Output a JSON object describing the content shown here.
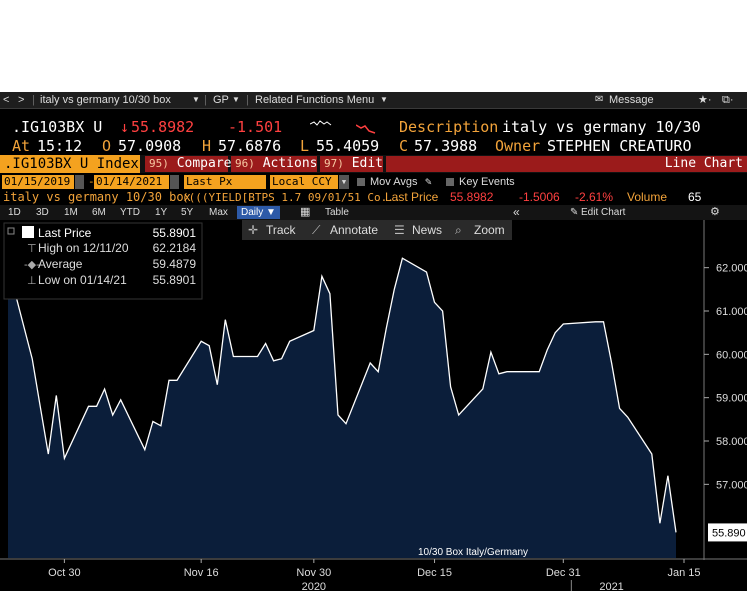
{
  "toolbar": {
    "back": "<",
    "fwd": ">",
    "search": "italy vs germany 10/30 box",
    "gp": "GP",
    "related": "Related Functions Menu",
    "message": "Message",
    "star": "★·",
    "window": "⧉·"
  },
  "quote": {
    "ticker": ".IG103BX U",
    "arrow": "↓",
    "last": "55.8982",
    "change": "-1.501",
    "desc_label": "Description",
    "desc_value": "italy vs germany 10/30",
    "at_label": "At",
    "time": "15:12",
    "open_label": "O",
    "open": "57.0908",
    "high_label": "H",
    "high": "57.6876",
    "low_label": "L",
    "low": "55.4059",
    "close_label": "C",
    "close": "57.3988",
    "owner_label": "Owner",
    "owner": "STEPHEN CREATURO"
  },
  "bar": {
    "security": ".IG103BX U Index",
    "compare_num": "95)",
    "compare": "Compare",
    "actions_num": "96)",
    "actions": "Actions",
    "edit_num": "97)",
    "edit": "Edit",
    "chart_type": "Line Chart"
  },
  "dates": {
    "start": "01/15/2019",
    "end": "01/14/2021",
    "field": "Last Px",
    "ccy": "Local CCY",
    "mov_avgs": "Mov Avgs",
    "key_events": "Key Events"
  },
  "security_row": {
    "name": "italy vs germany 10/30 box",
    "formula": "((((YIELD[BTPS 1.7 09/01/51 Co...",
    "last_price_label": "Last Price",
    "last_price": "55.8982",
    "chg": "-1.5006",
    "pct": "-2.61%",
    "volume_label": "Volume",
    "volume": "65"
  },
  "ranges": {
    "items": [
      "1D",
      "3D",
      "1M",
      "6M",
      "YTD",
      "1Y",
      "5Y",
      "Max"
    ],
    "selected": "Daily ▼",
    "table": "Table",
    "collapse": "«",
    "edit_chart": "Edit Chart",
    "settings": "⚙"
  },
  "chart_tools": {
    "track": "Track",
    "annotate": "Annotate",
    "news": "News",
    "zoom": "Zoom"
  },
  "legend": {
    "last_price_label": "Last Price",
    "last_price": "55.8901",
    "high_label": "High on 12/11/20",
    "high": "62.2184",
    "avg_label": "Average",
    "avg": "59.4879",
    "low_label": "Low on 01/14/21",
    "low": "55.8901"
  },
  "colors": {
    "line": "#ffffff",
    "fill": "#0b1e3a",
    "background": "#000000",
    "accent": "#f4a21f",
    "negative": "#ff4040"
  },
  "chart_data": {
    "type": "area",
    "title": "",
    "annotation": "10/30 Box Italy/Germany",
    "x": [
      "2020-10-23",
      "2020-10-26",
      "2020-10-27",
      "2020-10-28",
      "2020-10-29",
      "2020-10-30",
      "2020-11-02",
      "2020-11-03",
      "2020-11-04",
      "2020-11-05",
      "2020-11-06",
      "2020-11-09",
      "2020-11-10",
      "2020-11-11",
      "2020-11-12",
      "2020-11-13",
      "2020-11-16",
      "2020-11-17",
      "2020-11-18",
      "2020-11-19",
      "2020-11-20",
      "2020-11-23",
      "2020-11-24",
      "2020-11-25",
      "2020-11-26",
      "2020-11-27",
      "2020-11-30",
      "2020-12-01",
      "2020-12-02",
      "2020-12-03",
      "2020-12-04",
      "2020-12-07",
      "2020-12-08",
      "2020-12-09",
      "2020-12-10",
      "2020-12-11",
      "2020-12-14",
      "2020-12-15",
      "2020-12-16",
      "2020-12-17",
      "2020-12-18",
      "2020-12-21",
      "2020-12-22",
      "2020-12-23",
      "2020-12-24",
      "2020-12-28",
      "2020-12-29",
      "2020-12-30",
      "2020-12-31",
      "2021-01-04",
      "2021-01-05",
      "2021-01-06",
      "2021-01-07",
      "2021-01-08",
      "2021-01-11",
      "2021-01-12",
      "2021-01-13",
      "2021-01-14"
    ],
    "y": [
      62.05,
      59.9,
      58.8,
      57.7,
      59.05,
      57.6,
      58.8,
      58.8,
      59.2,
      58.6,
      58.95,
      57.8,
      58.45,
      58.35,
      59.4,
      59.4,
      60.3,
      60.2,
      59.3,
      60.8,
      59.95,
      59.95,
      60.25,
      59.85,
      59.9,
      60.3,
      60.55,
      61.8,
      61.4,
      58.6,
      58.4,
      59.8,
      59.6,
      60.6,
      61.5,
      62.2184,
      61.9,
      61.2,
      61.0,
      59.25,
      58.6,
      59.2,
      60.05,
      59.55,
      59.6,
      59.6,
      60.1,
      60.5,
      60.7,
      60.75,
      60.75,
      59.8,
      58.75,
      58.55,
      57.7,
      56.1,
      57.2,
      55.8901
    ],
    "x_ticks": [
      "Oct 30",
      "Nov 16",
      "Nov 30",
      "Dec 15",
      "Dec 31",
      "Jan 15"
    ],
    "x_years": [
      "2020",
      "2021"
    ],
    "y_ticks": [
      "62.000",
      "61.000",
      "60.000",
      "59.000",
      "58.000",
      "57.000"
    ],
    "ylim": [
      55.3,
      63.1
    ],
    "last_value_label": "55.890",
    "grid": false
  }
}
